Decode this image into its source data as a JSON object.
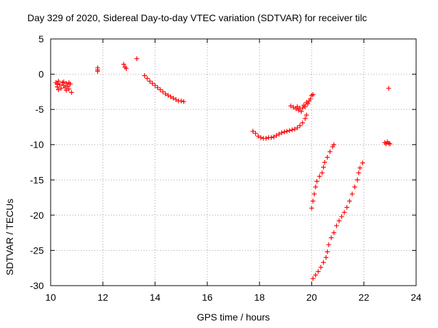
{
  "chart_data": {
    "type": "scatter",
    "title": "Day 329 of 2020, Sidereal Day-to-day VTEC variation (SDTVAR) for receiver tilc",
    "xlabel": "GPS time / hours",
    "ylabel": "SDTVAR / TECUs",
    "xlim": [
      10,
      24
    ],
    "ylim": [
      -30,
      5
    ],
    "xticks": [
      "10",
      "12",
      "14",
      "16",
      "18",
      "20",
      "22",
      "24"
    ],
    "yticks": [
      "5",
      "0",
      "-5",
      "-10",
      "-15",
      "-20",
      "-25",
      "-30"
    ],
    "grid": true,
    "marker": "+",
    "color": "#ff0000",
    "points": [
      [
        10.2,
        -1.2
      ],
      [
        10.25,
        -1.8
      ],
      [
        10.3,
        -1.0
      ],
      [
        10.35,
        -1.5
      ],
      [
        10.4,
        -2.0
      ],
      [
        10.45,
        -1.2
      ],
      [
        10.5,
        -1.6
      ],
      [
        10.55,
        -1.9
      ],
      [
        10.6,
        -1.3
      ],
      [
        10.65,
        -1.7
      ],
      [
        10.7,
        -2.1
      ],
      [
        10.75,
        -1.4
      ],
      [
        10.8,
        -2.6
      ],
      [
        10.3,
        -2.2
      ],
      [
        10.5,
        -1.1
      ],
      [
        10.7,
        -1.2
      ],
      [
        10.25,
        -1.4
      ],
      [
        10.6,
        -2.3
      ],
      [
        11.8,
        0.9
      ],
      [
        11.8,
        0.6
      ],
      [
        11.8,
        0.4
      ],
      [
        12.8,
        1.4
      ],
      [
        12.85,
        1.0
      ],
      [
        12.9,
        0.8
      ],
      [
        13.3,
        2.2
      ],
      [
        13.6,
        -0.2
      ],
      [
        13.7,
        -0.6
      ],
      [
        13.8,
        -1.0
      ],
      [
        13.9,
        -1.3
      ],
      [
        14.0,
        -1.6
      ],
      [
        14.1,
        -1.9
      ],
      [
        14.2,
        -2.2
      ],
      [
        14.3,
        -2.5
      ],
      [
        14.4,
        -2.8
      ],
      [
        14.5,
        -3.0
      ],
      [
        14.6,
        -3.2
      ],
      [
        14.7,
        -3.4
      ],
      [
        14.8,
        -3.6
      ],
      [
        14.9,
        -3.8
      ],
      [
        15.0,
        -3.8
      ],
      [
        15.1,
        -3.9
      ],
      [
        17.75,
        -8.1
      ],
      [
        17.85,
        -8.4
      ],
      [
        17.95,
        -8.8
      ],
      [
        18.05,
        -9.0
      ],
      [
        18.15,
        -9.1
      ],
      [
        18.25,
        -9.1
      ],
      [
        18.35,
        -9.0
      ],
      [
        18.45,
        -9.0
      ],
      [
        18.55,
        -8.9
      ],
      [
        18.65,
        -8.7
      ],
      [
        18.75,
        -8.5
      ],
      [
        18.85,
        -8.3
      ],
      [
        18.95,
        -8.2
      ],
      [
        19.05,
        -8.1
      ],
      [
        19.15,
        -8.0
      ],
      [
        19.25,
        -7.9
      ],
      [
        19.35,
        -7.8
      ],
      [
        19.45,
        -7.6
      ],
      [
        19.55,
        -7.3
      ],
      [
        19.65,
        -6.9
      ],
      [
        19.75,
        -6.3
      ],
      [
        19.8,
        -5.8
      ],
      [
        19.2,
        -4.5
      ],
      [
        19.3,
        -4.7
      ],
      [
        19.4,
        -4.9
      ],
      [
        19.5,
        -5.1
      ],
      [
        19.6,
        -5.3
      ],
      [
        19.65,
        -4.8
      ],
      [
        19.7,
        -4.4
      ],
      [
        19.75,
        -4.6
      ],
      [
        19.8,
        -4.0
      ],
      [
        19.85,
        -4.2
      ],
      [
        19.9,
        -3.8
      ],
      [
        19.95,
        -3.5
      ],
      [
        20.0,
        -3.0
      ],
      [
        20.05,
        -2.9
      ],
      [
        19.55,
        -4.8
      ],
      [
        19.45,
        -4.6
      ],
      [
        20.0,
        -19.0
      ],
      [
        20.05,
        -18.0
      ],
      [
        20.1,
        -17.0
      ],
      [
        20.15,
        -16.0
      ],
      [
        20.2,
        -15.2
      ],
      [
        20.3,
        -14.5
      ],
      [
        20.4,
        -14.0
      ],
      [
        20.45,
        -13.2
      ],
      [
        20.5,
        -12.5
      ],
      [
        20.6,
        -11.8
      ],
      [
        20.7,
        -11.0
      ],
      [
        20.8,
        -10.3
      ],
      [
        20.85,
        -10.0
      ],
      [
        20.05,
        -29.0
      ],
      [
        20.15,
        -28.5
      ],
      [
        20.25,
        -28.0
      ],
      [
        20.35,
        -27.4
      ],
      [
        20.45,
        -26.7
      ],
      [
        20.55,
        -26.0
      ],
      [
        20.6,
        -25.2
      ],
      [
        20.65,
        -24.2
      ],
      [
        20.75,
        -23.2
      ],
      [
        20.85,
        -22.5
      ],
      [
        20.95,
        -21.5
      ],
      [
        21.05,
        -20.8
      ],
      [
        21.15,
        -20.2
      ],
      [
        21.25,
        -19.6
      ],
      [
        21.35,
        -18.9
      ],
      [
        21.45,
        -18.0
      ],
      [
        21.55,
        -17.0
      ],
      [
        21.65,
        -16.0
      ],
      [
        21.75,
        -15.0
      ],
      [
        21.8,
        -14.0
      ],
      [
        21.85,
        -13.3
      ],
      [
        21.95,
        -12.6
      ],
      [
        22.8,
        -9.7
      ],
      [
        22.85,
        -9.9
      ],
      [
        22.9,
        -9.6
      ],
      [
        22.95,
        -9.8
      ],
      [
        23.0,
        -9.9
      ],
      [
        22.95,
        -2.0
      ]
    ]
  }
}
